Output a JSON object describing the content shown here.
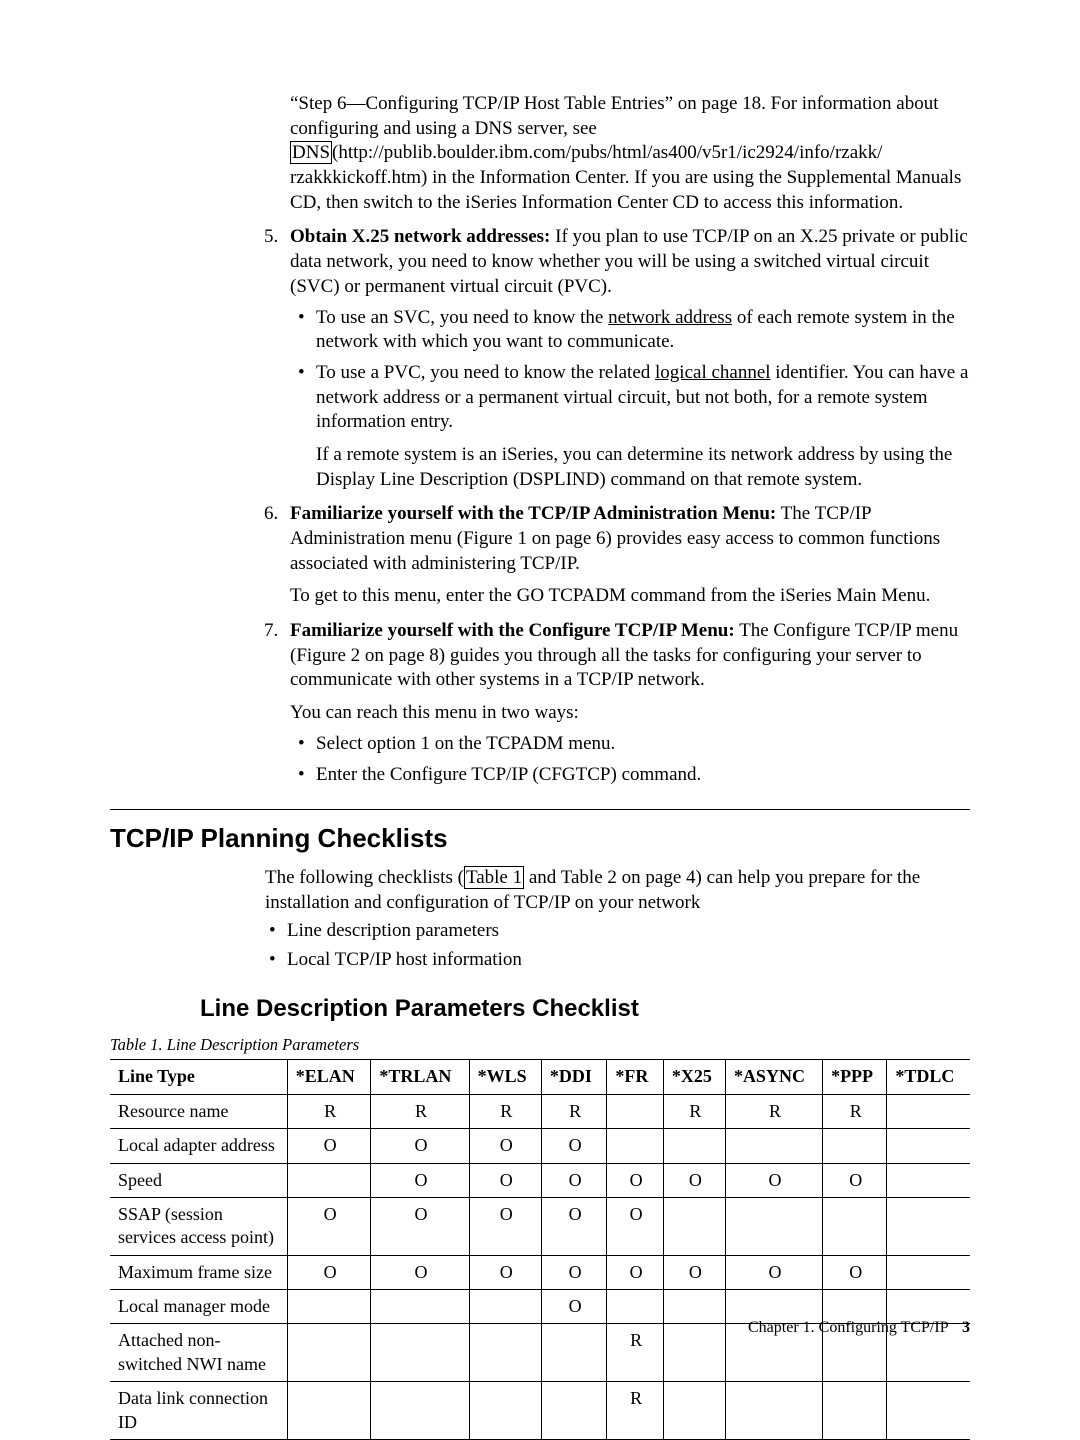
{
  "intro": {
    "p1a": "“Step 6—Configuring TCP/IP Host Table Entries” on page 18. For information about configuring and using a DNS server, see ",
    "dns_label": "DNS",
    "p1b": "(http://publib.boulder.ibm.com/pubs/html/as400/v5r1/ic2924/info/rzakk/ rzakkkickoff.htm) in the Information Center. If you are using the Supplemental Manuals CD, then switch to the iSeries Information Center CD to access this information."
  },
  "item5": {
    "num": "5.",
    "lead": "Obtain X.25 network addresses:",
    "body": " If you plan to use TCP/IP on an X.25 private or public data network, you need to know whether you will be using a switched virtual circuit (SVC) or permanent virtual circuit (PVC).",
    "b1a": "To use an SVC, you need to know the ",
    "b1u": "network address",
    "b1b": " of each remote system in the network with which you want to communicate.",
    "b2a": "To use a PVC, you need to know the related ",
    "b2u": "logical channel",
    "b2b": " identifier. You can have a network address or a permanent virtual circuit, but not both, for a remote system information entry.",
    "after": "If a remote system is an iSeries, you can determine its network address by using the Display Line Description (DSPLIND) command on that remote system."
  },
  "item6": {
    "num": "6.",
    "lead": "Familiarize yourself with the TCP/IP Administration Menu:",
    "body": " The TCP/IP Administration menu (Figure 1 on page 6) provides easy access to common functions associated with administering TCP/IP.",
    "after": "To get to this menu, enter the GO TCPADM command from the iSeries Main Menu."
  },
  "item7": {
    "num": "7.",
    "lead": "Familiarize yourself with the Configure TCP/IP Menu:",
    "body": " The Configure TCP/IP menu (Figure 2 on page 8) guides you through all the tasks for configuring your server to communicate with other systems in a TCP/IP network.",
    "after": "You can reach this menu in two ways:",
    "b1": "Select option 1 on the TCPADM menu.",
    "b2": "Enter the Configure TCP/IP (CFGTCP) command."
  },
  "sec1": {
    "title": "TCP/IP Planning Checklists",
    "p_a": "The following checklists (",
    "p_link": "Table 1",
    "p_b": " and Table 2 on page 4) can help you prepare for the installation and configuration of TCP/IP on your network",
    "b1": "Line description parameters",
    "b2": "Local TCP/IP host information"
  },
  "sec2": {
    "title": "Line Description Parameters Checklist",
    "caption": "Table 1. Line Description Parameters"
  },
  "table": {
    "headers": [
      "Line Type",
      "*ELAN",
      "*TRLAN",
      "*WLS",
      "*DDI",
      "*FR",
      "*X25",
      "*ASYNC",
      "*PPP",
      "*TDLC"
    ],
    "rows": [
      {
        "label": "Resource name",
        "vals": [
          "R",
          "R",
          "R",
          "R",
          "",
          "R",
          "R",
          "R",
          ""
        ]
      },
      {
        "label": "Local adapter address",
        "vals": [
          "O",
          "O",
          "O",
          "O",
          "",
          "",
          "",
          "",
          ""
        ]
      },
      {
        "label": "Speed",
        "vals": [
          "",
          "O",
          "O",
          "O",
          "O",
          "O",
          "O",
          "O",
          ""
        ]
      },
      {
        "label": "SSAP (session services access point)",
        "vals": [
          "O",
          "O",
          "O",
          "O",
          "O",
          "",
          "",
          "",
          ""
        ]
      },
      {
        "label": "Maximum frame size",
        "vals": [
          "O",
          "O",
          "O",
          "O",
          "O",
          "O",
          "O",
          "O",
          ""
        ]
      },
      {
        "label": "Local manager mode",
        "vals": [
          "",
          "",
          "",
          "O",
          "",
          "",
          "",
          "",
          ""
        ]
      },
      {
        "label": "Attached non-switched NWI name",
        "vals": [
          "",
          "",
          "",
          "",
          "R",
          "",
          "",
          "",
          ""
        ]
      },
      {
        "label": "Data link connection ID",
        "vals": [
          "",
          "",
          "",
          "",
          "R",
          "",
          "",
          "",
          ""
        ]
      }
    ],
    "col_widths": [
      "157",
      "63",
      "73",
      "58",
      "58",
      "50",
      "55",
      "74",
      "55",
      "67"
    ]
  },
  "footer": {
    "chapter": "Chapter 1. Configuring TCP/IP",
    "page": "3"
  }
}
